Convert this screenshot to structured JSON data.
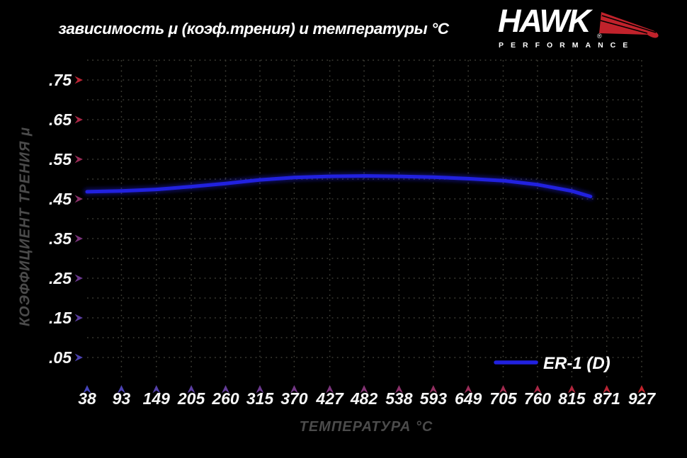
{
  "title": "зависимость μ (коэф.трения) и температуры °C",
  "logo": {
    "brand": "HAWK",
    "registered": "®",
    "subtitle": "PERFORMANCE"
  },
  "legend": {
    "label": "ER-1 (D)"
  },
  "axes": {
    "x_title": "ТЕМПЕРАТУРА °C",
    "y_title": "КОЭФФИЦИЕНТ ТРЕНИЯ μ"
  },
  "chart_data": {
    "type": "line",
    "title": "зависимость μ (коэф.трения) и температуры °C",
    "xlabel": "ТЕМПЕРАТУРА °C",
    "ylabel": "КОЭФФИЦИЕНТ ТРЕНИЯ μ",
    "x_tick_values": [
      38,
      93,
      149,
      205,
      260,
      315,
      370,
      427,
      482,
      538,
      593,
      649,
      705,
      760,
      815,
      871,
      927
    ],
    "y_tick_values": [
      0.05,
      0.15,
      0.25,
      0.35,
      0.45,
      0.55,
      0.65,
      0.75
    ],
    "y_tick_labels": [
      ".05",
      ".15",
      ".25",
      ".35",
      ".45",
      ".55",
      ".65",
      ".75"
    ],
    "xlim": [
      38,
      927
    ],
    "ylim": [
      0,
      0.8
    ],
    "grid": "dotted",
    "legend_position": "inside-bottom-right",
    "series": [
      {
        "name": "ER-1 (D)",
        "color": "#2121df",
        "points": [
          [
            38,
            0.468
          ],
          [
            93,
            0.47
          ],
          [
            149,
            0.474
          ],
          [
            205,
            0.481
          ],
          [
            260,
            0.489
          ],
          [
            315,
            0.498
          ],
          [
            370,
            0.504
          ],
          [
            427,
            0.507
          ],
          [
            482,
            0.508
          ],
          [
            538,
            0.507
          ],
          [
            593,
            0.505
          ],
          [
            649,
            0.501
          ],
          [
            705,
            0.496
          ],
          [
            760,
            0.486
          ],
          [
            815,
            0.47
          ],
          [
            845,
            0.456
          ]
        ]
      }
    ]
  },
  "colors": {
    "background": "#000000",
    "curve_blue": "#2121df",
    "axis_red": "#c1222b",
    "axis_blue": "#3a3a8c",
    "arrow_blue": "#4444bb",
    "grid_gray": "#3e3e36",
    "axis_title_gray": "#4b4b4b",
    "text_white": "#ffffff",
    "logo_red": "#c1222b"
  }
}
